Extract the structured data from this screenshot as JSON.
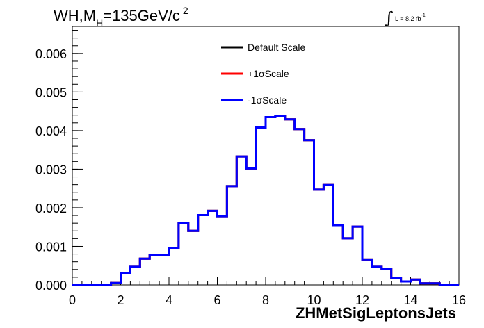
{
  "title": {
    "prefix": "WH,M",
    "sub": "H",
    "mid": "=135GeV/c",
    "sup": "2"
  },
  "lumi": {
    "label": "L = 8.2 fb",
    "sup": "-1"
  },
  "chart_data": {
    "type": "line",
    "xlabel": "ZHMetSigLeptonsJets",
    "ylabel": "",
    "xlim": [
      0,
      16
    ],
    "ylim": [
      0,
      0.0067
    ],
    "xticks": [
      "0",
      "2",
      "4",
      "6",
      "8",
      "10",
      "12",
      "14",
      "16"
    ],
    "yticks": [
      "0.000",
      "0.001",
      "0.002",
      "0.003",
      "0.004",
      "0.005",
      "0.006"
    ],
    "bin_edges": [
      0,
      0.4,
      0.8,
      1.2,
      1.6,
      2.0,
      2.4,
      2.8,
      3.2,
      3.6,
      4.0,
      4.4,
      4.8,
      5.2,
      5.6,
      6.0,
      6.4,
      6.8,
      7.2,
      7.6,
      8.0,
      8.4,
      8.8,
      9.2,
      9.6,
      10.0,
      10.4,
      10.8,
      11.2,
      11.6,
      12.0,
      12.4,
      12.8,
      13.2,
      13.6,
      14.0,
      14.4,
      14.8,
      15.2,
      15.6,
      16.0
    ],
    "series": [
      {
        "name": "Default Scale",
        "color": "#000000",
        "values": [
          0,
          0,
          0,
          0,
          5e-05,
          0.00031,
          0.00047,
          0.00068,
          0.00077,
          0.00077,
          0.00096,
          0.0016,
          0.0014,
          0.00181,
          0.00192,
          0.00178,
          0.00256,
          0.00333,
          0.00302,
          0.00408,
          0.00435,
          0.00437,
          0.00429,
          0.00404,
          0.00375,
          0.00247,
          0.00259,
          0.00155,
          0.00121,
          0.00151,
          0.00066,
          0.00047,
          0.00041,
          0.00018,
          9e-05,
          0.00014,
          4e-05,
          4e-05,
          0,
          0
        ]
      },
      {
        "name": "+1σScale",
        "color": "#ff0000",
        "values": [
          0,
          0,
          0,
          0,
          5e-05,
          0.00031,
          0.00047,
          0.00068,
          0.00077,
          0.00077,
          0.00096,
          0.0016,
          0.0014,
          0.00181,
          0.00192,
          0.00178,
          0.00256,
          0.00333,
          0.00302,
          0.00408,
          0.00435,
          0.00437,
          0.00429,
          0.00404,
          0.00375,
          0.00247,
          0.00259,
          0.00155,
          0.00121,
          0.00151,
          0.00066,
          0.00047,
          0.00041,
          0.00018,
          9e-05,
          0.00014,
          4e-05,
          4e-05,
          0,
          0
        ]
      },
      {
        "name": "-1σScale",
        "color": "#0000ff",
        "values": [
          0,
          0,
          0,
          0,
          5e-05,
          0.00031,
          0.00047,
          0.00068,
          0.00077,
          0.00077,
          0.00096,
          0.0016,
          0.0014,
          0.00181,
          0.00192,
          0.00178,
          0.00256,
          0.00333,
          0.00302,
          0.00408,
          0.00435,
          0.00437,
          0.00429,
          0.00404,
          0.00375,
          0.00247,
          0.00259,
          0.00155,
          0.00121,
          0.00151,
          0.00066,
          0.00047,
          0.00041,
          0.00018,
          9e-05,
          0.00014,
          4e-05,
          4e-05,
          0,
          0
        ]
      }
    ],
    "legend": "top-center",
    "grid": false
  }
}
